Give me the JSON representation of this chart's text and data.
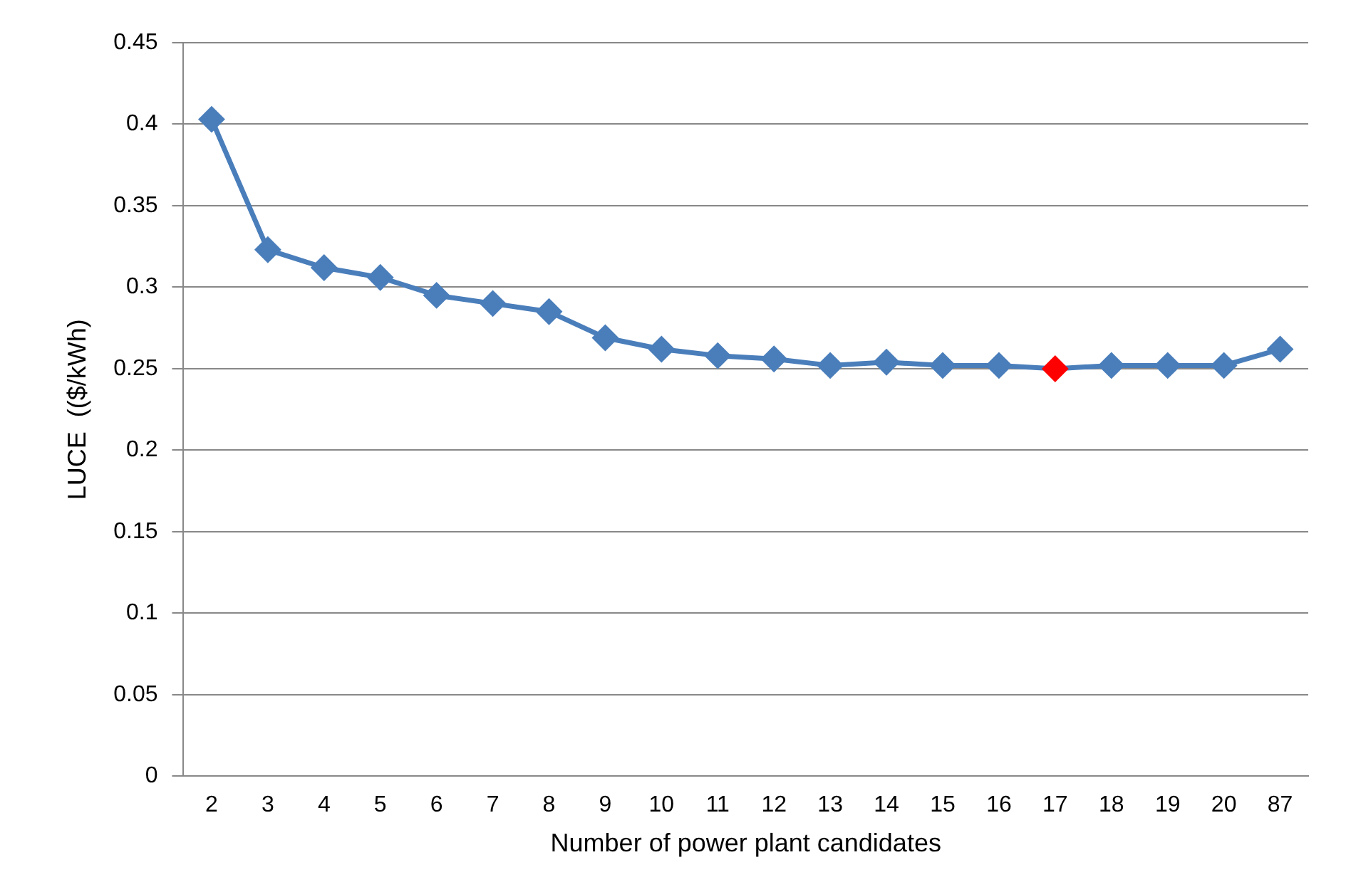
{
  "chart_data": {
    "type": "line",
    "xlabel": "Number of power plant candidates",
    "ylabel": "LUCE  (($/kWh)",
    "categories": [
      "2",
      "3",
      "4",
      "5",
      "6",
      "7",
      "8",
      "9",
      "10",
      "11",
      "12",
      "13",
      "14",
      "15",
      "16",
      "17",
      "18",
      "19",
      "20",
      "87"
    ],
    "series": [
      {
        "color": "#4a7ebb",
        "colors": [
          "#4a7ebb",
          "#4a7ebb",
          "#4a7ebb",
          "#4a7ebb",
          "#4a7ebb",
          "#4a7ebb",
          "#4a7ebb",
          "#4a7ebb",
          "#4a7ebb",
          "#4a7ebb",
          "#4a7ebb",
          "#4a7ebb",
          "#4a7ebb",
          "#4a7ebb",
          "#4a7ebb",
          "#ff0000",
          "#4a7ebb",
          "#4a7ebb",
          "#4a7ebb",
          "#4a7ebb"
        ],
        "values": [
          0.403,
          0.323,
          0.312,
          0.306,
          0.295,
          0.29,
          0.285,
          0.269,
          0.262,
          0.258,
          0.256,
          0.252,
          0.254,
          0.252,
          0.252,
          0.25,
          0.252,
          0.252,
          0.252,
          0.262
        ]
      }
    ],
    "ylim": [
      0,
      0.45
    ],
    "yticks": [
      0,
      0.05,
      0.1,
      0.15,
      0.2,
      0.25,
      0.3,
      0.35,
      0.4,
      0.45
    ],
    "grid": "y",
    "legend": false,
    "marker": "diamond",
    "line_style": "solid"
  }
}
